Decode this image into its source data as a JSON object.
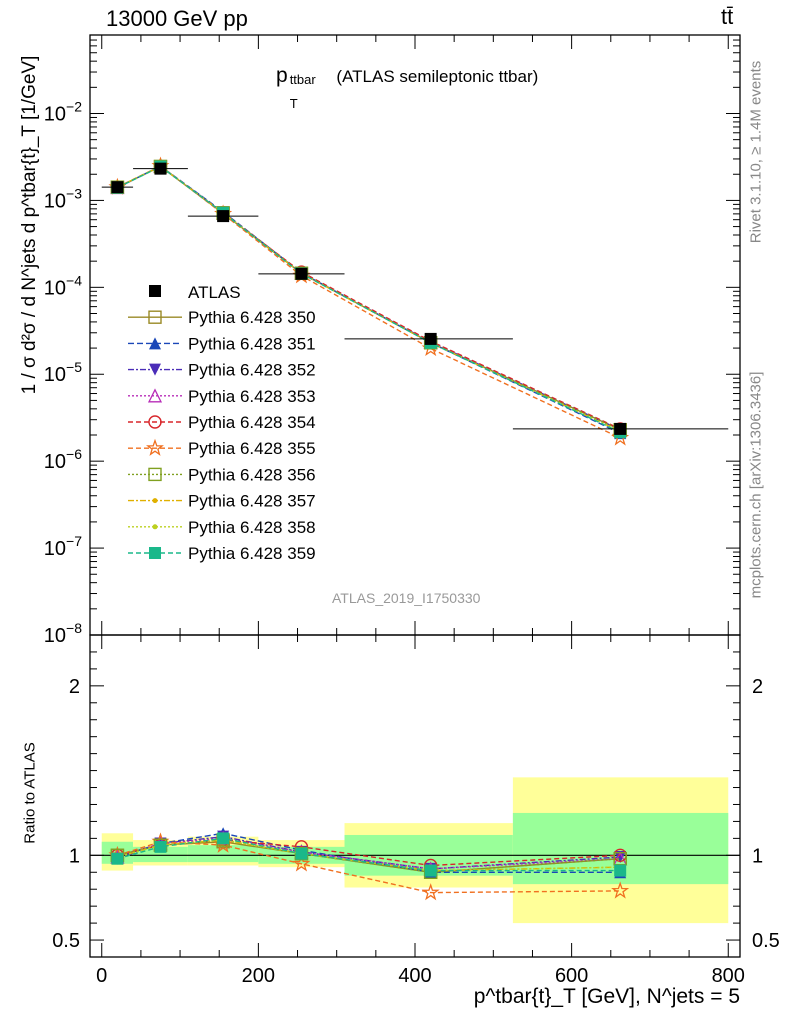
{
  "header": {
    "energy_label": "13000 GeV pp",
    "process_label": "tt̄",
    "rivet_label": "Rivet 3.1.10, ≥ 1.4M events",
    "mcplots_label": "mcplots.cern.ch [arXiv:1306.3436]",
    "analysis_id": "ATLAS_2019_I1750330"
  },
  "chart_data": [
    {
      "type": "line",
      "panel": "main",
      "title_main": "p",
      "title_sub": "T",
      "title_sup": "ttbar",
      "title_rest": " (ATLAS semileptonic ttbar)",
      "ylabel": "1 / σ d²σ / d N^jets d p^tbar{t}_T [1/GeV]",
      "ylim": [
        1e-08,
        0.08
      ],
      "yscale": "log",
      "yticks": [
        {
          "v": 1e-08,
          "m": "10",
          "e": "−8"
        },
        {
          "v": 1e-07,
          "m": "10",
          "e": "−7"
        },
        {
          "v": 1e-06,
          "m": "10",
          "e": "−6"
        },
        {
          "v": 1e-05,
          "m": "10",
          "e": "−5"
        },
        {
          "v": 0.0001,
          "m": "10",
          "e": "−4"
        },
        {
          "v": 0.001,
          "m": "10",
          "e": "−3"
        },
        {
          "v": 0.01,
          "m": "10",
          "e": "−2"
        }
      ],
      "xlim": [
        -15,
        815
      ],
      "x": [
        20,
        75,
        155,
        255,
        420,
        662
      ],
      "data": {
        "name": "ATLAS",
        "values": [
          0.00142,
          0.00232,
          0.00066,
          0.000143,
          2.55e-05,
          2.35e-06
        ],
        "xerr": [
          [
            0,
            40
          ],
          [
            40,
            110
          ],
          [
            110,
            200
          ],
          [
            200,
            310
          ],
          [
            310,
            525
          ],
          [
            525,
            800
          ]
        ]
      },
      "series": [
        {
          "name": "Pythia 6.428 350",
          "color": "#9a8a26",
          "dash": "",
          "marker": "square-open",
          "values": [
            0.00142,
            0.00245,
            0.00071,
            0.000145,
            2.3e-05,
            2.3e-06
          ]
        },
        {
          "name": "Pythia 6.428 351",
          "color": "#1a47b8",
          "dash": "6,3",
          "marker": "triangle-up",
          "values": [
            0.0014,
            0.00248,
            0.00074,
            0.000147,
            2.3e-05,
            2.1e-06
          ]
        },
        {
          "name": "Pythia 6.428 352",
          "color": "#4b2db8",
          "dash": "6,2,2,2",
          "marker": "triangle-down",
          "values": [
            0.0014,
            0.00247,
            0.00073,
            0.000145,
            2.35e-05,
            2.3e-06
          ]
        },
        {
          "name": "Pythia 6.428 353",
          "color": "#b82db8",
          "dash": "2,2",
          "marker": "triangle-open",
          "values": [
            0.00141,
            0.00247,
            0.00072,
            0.000146,
            2.35e-05,
            2.3e-06
          ]
        },
        {
          "name": "Pythia 6.428 354",
          "color": "#d8262b",
          "dash": "5,3",
          "marker": "circle-open",
          "values": [
            0.00142,
            0.00246,
            0.00072,
            0.00015,
            2.4e-05,
            2.35e-06
          ]
        },
        {
          "name": "Pythia 6.428 355",
          "color": "#f07020",
          "dash": "5,3",
          "marker": "star-open",
          "values": [
            0.00142,
            0.00249,
            0.0007,
            0.000136,
            1.98e-05,
            1.85e-06
          ]
        },
        {
          "name": "Pythia 6.428 356",
          "color": "#80a020",
          "dash": "2,2",
          "marker": "square-open",
          "values": [
            0.00142,
            0.00246,
            0.00072,
            0.000145,
            2.3e-05,
            2.3e-06
          ]
        },
        {
          "name": "Pythia 6.428 357",
          "color": "#e0b000",
          "dash": "6,2,2,2",
          "marker": "dot",
          "values": [
            0.00141,
            0.00246,
            0.00072,
            0.000145,
            2.3e-05,
            2.2e-06
          ]
        },
        {
          "name": "Pythia 6.428 358",
          "color": "#bcd020",
          "dash": "2,2",
          "marker": "dot",
          "values": [
            0.00141,
            0.00246,
            0.00072,
            0.000145,
            2.3e-05,
            2.2e-06
          ]
        },
        {
          "name": "Pythia 6.428 359",
          "color": "#1ab88a",
          "dash": "5,3",
          "marker": "square",
          "values": [
            0.0014,
            0.00245,
            0.00072,
            0.000144,
            2.3e-05,
            2.15e-06
          ]
        }
      ]
    },
    {
      "type": "line",
      "panel": "ratio",
      "ylabel": "Ratio to ATLAS",
      "ylim": [
        0.4,
        2.3
      ],
      "yticks": [
        0.5,
        1,
        2
      ],
      "xlabel": "p^tbar{t}_T [GeV], N^jets = 5",
      "xticks": [
        0,
        200,
        400,
        600,
        800
      ],
      "bands": [
        {
          "x": [
            0,
            40
          ],
          "inner": [
            0.95,
            1.08
          ],
          "outer": [
            0.91,
            1.13
          ]
        },
        {
          "x": [
            40,
            110
          ],
          "inner": [
            0.96,
            1.05
          ],
          "outer": [
            0.94,
            1.09
          ]
        },
        {
          "x": [
            110,
            200
          ],
          "inner": [
            0.96,
            1.06
          ],
          "outer": [
            0.94,
            1.11
          ]
        },
        {
          "x": [
            200,
            310
          ],
          "inner": [
            0.95,
            1.05
          ],
          "outer": [
            0.93,
            1.09
          ]
        },
        {
          "x": [
            310,
            525
          ],
          "inner": [
            0.88,
            1.12
          ],
          "outer": [
            0.81,
            1.19
          ]
        },
        {
          "x": [
            525,
            800
          ],
          "inner": [
            0.83,
            1.25
          ],
          "outer": [
            0.6,
            1.46
          ]
        }
      ],
      "x": [
        20,
        75,
        155,
        255,
        420,
        662
      ],
      "series": [
        {
          "name": "Pythia 6.428 350",
          "values": [
            1.0,
            1.06,
            1.08,
            1.01,
            0.9,
            0.98
          ]
        },
        {
          "name": "Pythia 6.428 351",
          "values": [
            0.99,
            1.07,
            1.13,
            1.03,
            0.9,
            0.9
          ]
        },
        {
          "name": "Pythia 6.428 352",
          "values": [
            0.98,
            1.07,
            1.11,
            1.02,
            0.92,
            0.99
          ]
        },
        {
          "name": "Pythia 6.428 353",
          "values": [
            0.99,
            1.07,
            1.1,
            1.02,
            0.92,
            0.98
          ]
        },
        {
          "name": "Pythia 6.428 354",
          "values": [
            1.0,
            1.06,
            1.09,
            1.05,
            0.94,
            1.0
          ]
        },
        {
          "name": "Pythia 6.428 355",
          "values": [
            1.0,
            1.08,
            1.06,
            0.95,
            0.78,
            0.79
          ]
        },
        {
          "name": "Pythia 6.428 356",
          "values": [
            1.0,
            1.06,
            1.09,
            1.01,
            0.9,
            0.98
          ]
        },
        {
          "name": "Pythia 6.428 357",
          "values": [
            0.99,
            1.06,
            1.09,
            1.01,
            0.91,
            0.93
          ]
        },
        {
          "name": "Pythia 6.428 358",
          "values": [
            0.99,
            1.06,
            1.09,
            1.01,
            0.91,
            0.93
          ]
        },
        {
          "name": "Pythia 6.428 359",
          "values": [
            0.98,
            1.05,
            1.1,
            1.01,
            0.91,
            0.91
          ]
        }
      ]
    }
  ]
}
